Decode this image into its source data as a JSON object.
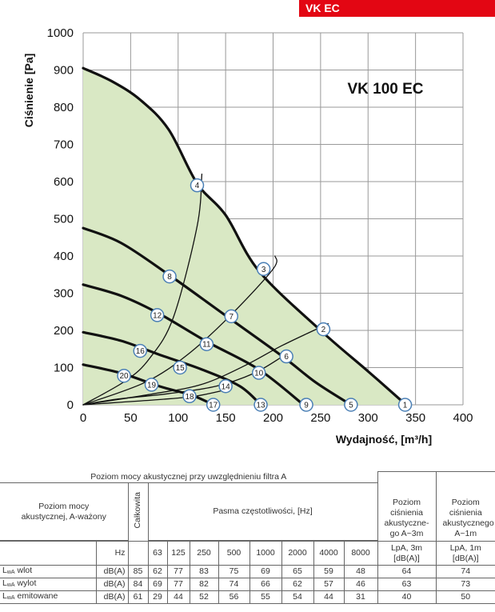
{
  "badge": "VK EC",
  "chart_data": {
    "type": "line",
    "title": "VK 100 EC",
    "xlabel": "Wydajność, [m³/h]",
    "ylabel": "Ciśnienie [Pa]",
    "xlim": [
      0,
      400
    ],
    "ylim": [
      0,
      1000
    ],
    "xticks": [
      0,
      50,
      100,
      150,
      200,
      250,
      300,
      350,
      400
    ],
    "yticks": [
      0,
      100,
      200,
      300,
      400,
      500,
      600,
      700,
      800,
      900,
      1000
    ],
    "grid": true,
    "area_fill": "#d9e8c4",
    "series": [
      {
        "points": [
          [
            0,
            905
          ],
          [
            30,
            870
          ],
          [
            60,
            820
          ],
          [
            90,
            740
          ],
          [
            120,
            595
          ],
          [
            150,
            510
          ],
          [
            185,
            360
          ],
          [
            250,
            200
          ],
          [
            300,
            90
          ],
          [
            340,
            0
          ]
        ]
      },
      {
        "points": [
          [
            0,
            475
          ],
          [
            40,
            435
          ],
          [
            90,
            350
          ],
          [
            150,
            240
          ],
          [
            210,
            130
          ],
          [
            245,
            60
          ],
          [
            282,
            0
          ]
        ]
      },
      {
        "points": [
          [
            0,
            323
          ],
          [
            40,
            293
          ],
          [
            80,
            245
          ],
          [
            130,
            170
          ],
          [
            185,
            95
          ],
          [
            232,
            0
          ]
        ]
      },
      {
        "points": [
          [
            0,
            195
          ],
          [
            40,
            172
          ],
          [
            80,
            135
          ],
          [
            125,
            95
          ],
          [
            165,
            50
          ],
          [
            187,
            0
          ]
        ]
      },
      {
        "points": [
          [
            0,
            108
          ],
          [
            40,
            85
          ],
          [
            80,
            50
          ],
          [
            115,
            25
          ],
          [
            137,
            0
          ]
        ]
      },
      {
        "points": [
          [
            0,
            0
          ],
          [
            45,
            65
          ],
          [
            70,
            125
          ],
          [
            95,
            235
          ],
          [
            120,
            480
          ],
          [
            125,
            620
          ]
        ]
      },
      {
        "points": [
          [
            0,
            0
          ],
          [
            65,
            60
          ],
          [
            110,
            135
          ],
          [
            155,
            240
          ],
          [
            200,
            365
          ],
          [
            202,
            400
          ]
        ]
      },
      {
        "points": [
          [
            0,
            0
          ],
          [
            75,
            30
          ],
          [
            125,
            55
          ],
          [
            170,
            105
          ],
          [
            210,
            160
          ],
          [
            258,
            218
          ]
        ]
      },
      {
        "points": [
          [
            0,
            0
          ],
          [
            35,
            15
          ],
          [
            90,
            30
          ],
          [
            140,
            50
          ],
          [
            180,
            85
          ],
          [
            210,
            130
          ]
        ]
      },
      {
        "points": [
          [
            0,
            0
          ],
          [
            40,
            7
          ],
          [
            85,
            15
          ],
          [
            120,
            24
          ],
          [
            150,
            40
          ]
        ]
      }
    ],
    "markers": [
      {
        "label": "1",
        "x": 339,
        "y": 0
      },
      {
        "label": "2",
        "x": 253,
        "y": 203
      },
      {
        "label": "3",
        "x": 190,
        "y": 365
      },
      {
        "label": "4",
        "x": 120,
        "y": 590
      },
      {
        "label": "5",
        "x": 282,
        "y": 0
      },
      {
        "label": "6",
        "x": 214,
        "y": 130
      },
      {
        "label": "7",
        "x": 156,
        "y": 238
      },
      {
        "label": "8",
        "x": 91,
        "y": 345
      },
      {
        "label": "9",
        "x": 235,
        "y": 0
      },
      {
        "label": "10",
        "x": 185,
        "y": 86
      },
      {
        "label": "11",
        "x": 130,
        "y": 163
      },
      {
        "label": "12",
        "x": 78,
        "y": 241
      },
      {
        "label": "13",
        "x": 187,
        "y": 0
      },
      {
        "label": "14",
        "x": 150,
        "y": 50
      },
      {
        "label": "15",
        "x": 102,
        "y": 100
      },
      {
        "label": "16",
        "x": 60,
        "y": 145
      },
      {
        "label": "17",
        "x": 137,
        "y": 0
      },
      {
        "label": "18",
        "x": 112,
        "y": 23
      },
      {
        "label": "19",
        "x": 72,
        "y": 54
      },
      {
        "label": "20",
        "x": 43,
        "y": 78
      }
    ]
  },
  "table": {
    "title": "Poziom mocy akustycznej przy uwzględnieniu filtra A",
    "row_header": "Poziom mocy akustycznej, A-ważony",
    "total_label": "Całkowita",
    "bands_label": "Pasma częstotliwości, [Hz]",
    "lpa3_header": "Poziom ciśnienia akustyczne-go A~3m",
    "lpa1_header": "Poziom ciśnienia akustycznego A~1m",
    "hz_label": "Hz",
    "freqs": [
      "63",
      "125",
      "250",
      "500",
      "1000",
      "2000",
      "4000",
      "8000"
    ],
    "lpa3_unit": "LpA, 3m [dB(A)]",
    "lpa1_unit": "LpA, 1m [dB(A)]",
    "lwa_main": "L",
    "lwa_sub": "wA",
    "rows": [
      {
        "name": "wlot",
        "unit": "dB(A)",
        "total": "85",
        "bands": [
          "62",
          "77",
          "83",
          "75",
          "69",
          "65",
          "59",
          "48"
        ],
        "lpa3": "64",
        "lpa1": "74"
      },
      {
        "name": "wylot",
        "unit": "dB(A)",
        "total": "84",
        "bands": [
          "69",
          "77",
          "82",
          "74",
          "66",
          "62",
          "57",
          "46"
        ],
        "lpa3": "63",
        "lpa1": "73"
      },
      {
        "name": "emitowane",
        "unit": "dB(A)",
        "total": "61",
        "bands": [
          "29",
          "44",
          "52",
          "56",
          "55",
          "54",
          "44",
          "31"
        ],
        "lpa3": "40",
        "lpa1": "50"
      }
    ]
  }
}
